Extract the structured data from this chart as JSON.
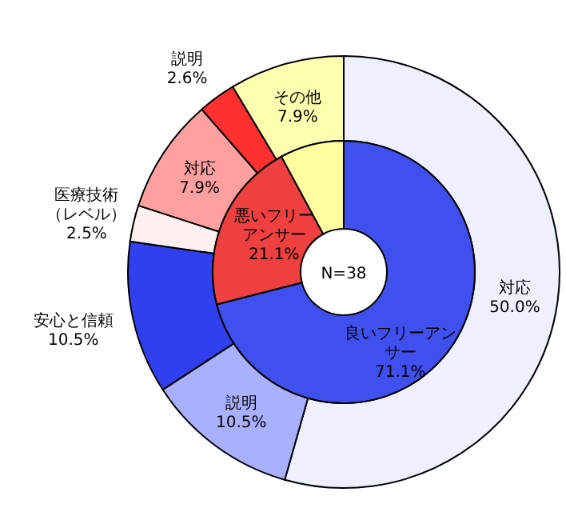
{
  "chart_data": [
    {
      "type": "donut",
      "categories": [
        "対応",
        "説明",
        "安心と信頼",
        "医療技術（レベル）",
        "対応",
        "説明",
        "その他"
      ],
      "values": [
        50.0,
        10.5,
        10.5,
        2.5,
        7.9,
        2.6,
        7.9
      ],
      "value_labels": [
        "50.0%",
        "10.5%",
        "10.5%",
        "2.5%",
        "7.9%",
        "2.6%",
        "7.9%"
      ],
      "colors": [
        "#eef0ff",
        "#a8b0ff",
        "#3040ee",
        "#fff0f0",
        "#ffa0a0",
        "#ff3030",
        "#ffffb0"
      ]
    },
    {
      "type": "donut",
      "categories": [
        "良いフリーアンサー",
        "悪いフリーアンサー",
        null
      ],
      "values": [
        71.1,
        21.1,
        7.9
      ],
      "value_labels": [
        "71.1%",
        "21.1%",
        null
      ],
      "colors": [
        "#4050ee",
        "#ee4040",
        "#ffffa0"
      ],
      "annotations": [
        "N=38"
      ]
    }
  ]
}
